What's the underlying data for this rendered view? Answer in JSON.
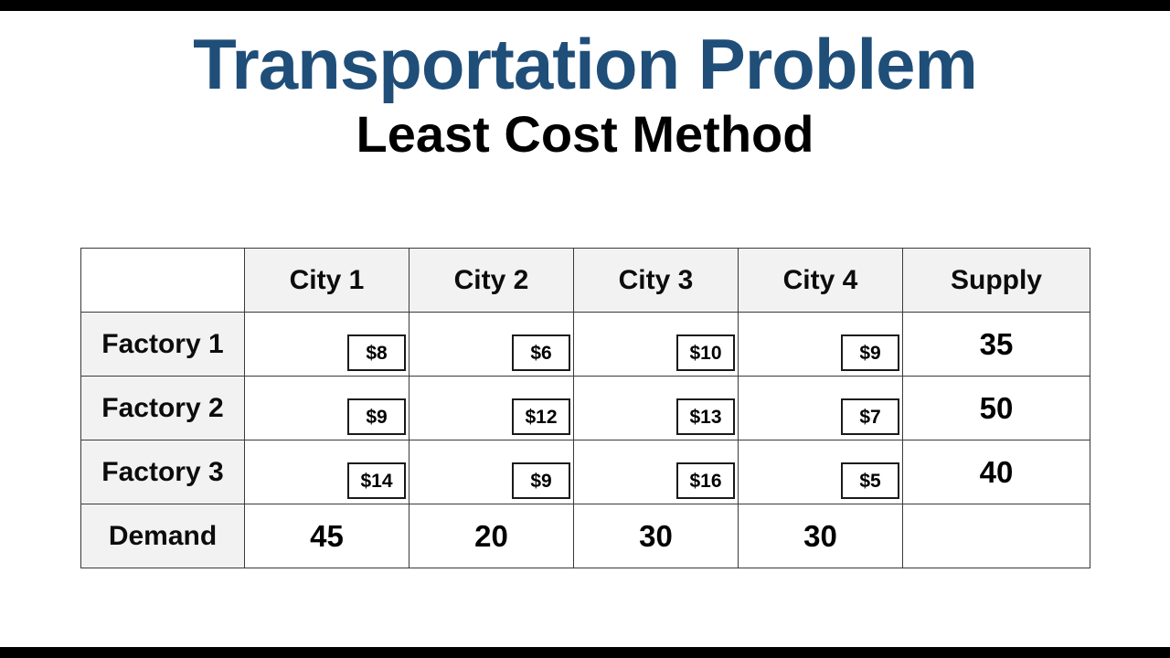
{
  "colors": {
    "title_accent": "#1f4e79",
    "table_header_bg": "#f2f2f2",
    "table_border": "#3a3a3a"
  },
  "header": {
    "title": "Transportation Problem",
    "subtitle": "Least Cost Method"
  },
  "table": {
    "corner": "",
    "columns": [
      "City 1",
      "City 2",
      "City 3",
      "City 4",
      "Supply"
    ],
    "rows": [
      {
        "label": "Factory 1",
        "costs": [
          "$8",
          "$6",
          "$10",
          "$9"
        ],
        "supply": "35"
      },
      {
        "label": "Factory 2",
        "costs": [
          "$9",
          "$12",
          "$13",
          "$7"
        ],
        "supply": "50"
      },
      {
        "label": "Factory 3",
        "costs": [
          "$14",
          "$9",
          "$16",
          "$5"
        ],
        "supply": "40"
      }
    ],
    "demand": {
      "label": "Demand",
      "values": [
        "45",
        "20",
        "30",
        "30"
      ]
    }
  }
}
